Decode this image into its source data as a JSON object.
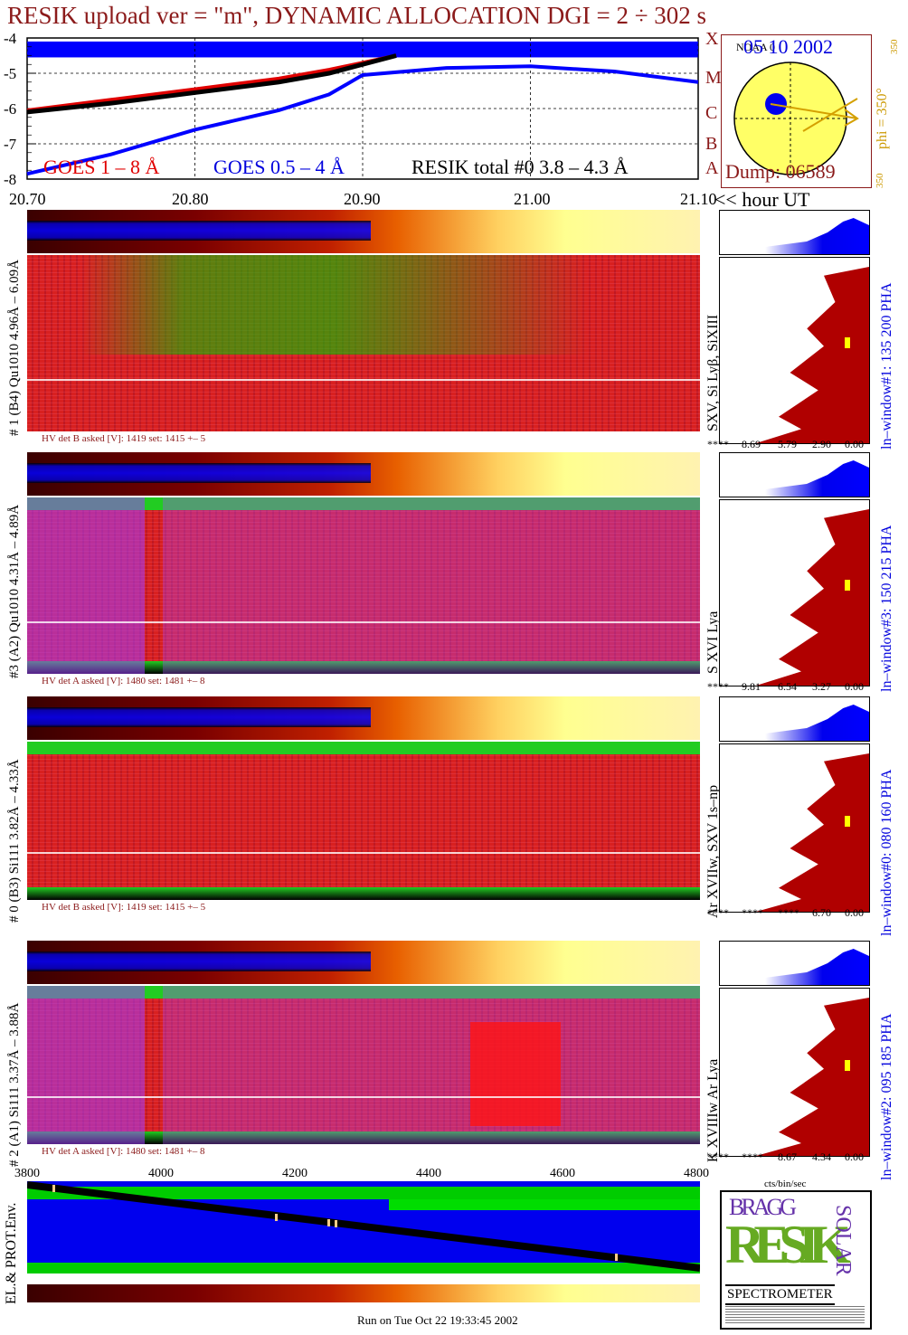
{
  "title": "RESIK upload ver = \"m\", DYNAMIC ALLOCATION  DGI =   2 ÷ 302 s",
  "date": "05 10 2002",
  "dump": "Dump: 06589",
  "noaa": "NOAA 0",
  "phi_label": "phi = 350°",
  "phi_top": "350",
  "phi_bottom": "350",
  "goes_classes": [
    "A",
    "B",
    "C",
    "M",
    "X"
  ],
  "legend": {
    "goes18": "GOES 1 – 8 Å",
    "goes054": "GOES 0.5 – 4 Å",
    "resik": "RESIK total #0  3.8 – 4.3 Å"
  },
  "x_axis_suffix": "<< hour UT",
  "footer": "Run on Tue Oct 22 19:33:45 2002",
  "bottom_axis_label": "cts/bin/sec",
  "env_label": "EL.& PROT.Env.",
  "logo": {
    "line1": "BRAGG",
    "line2": "RESIK",
    "line3": "SOLAR",
    "line4": "SPECTROMETER"
  },
  "channels": [
    {
      "left_label": "# 1 (B4) Qu1010 4.96Å – 6.09Å",
      "right_label": "SXV, Si Lyβ, SiXIII",
      "window": "ln–window#1:  135 200 PHA",
      "hv": "HV det B asked [V]:  1419 set:  1415  +–    5",
      "pha": [
        "****",
        "8.69",
        "5.79",
        "2.90",
        "0.00"
      ]
    },
    {
      "left_label": "#3 (A2) Qu1010  4.31Å – 4.89Å",
      "right_label": "S XVI Lya",
      "window": "ln–window#3:  150 215 PHA",
      "hv": "HV det A asked [V]:  1480 set:  1481  +–    8",
      "pha": [
        "****",
        "9.81",
        "6.54",
        "3.27",
        "0.00"
      ]
    },
    {
      "left_label": "# 0 (B3) Si111  3.82Å – 4.33Å",
      "right_label": "Ar XVIIw,  SXV 1s–np",
      "window": "ln–window#0:  080 160 PHA",
      "hv": "HV det B asked [V]:  1419 set:  1415  +–    5",
      "pha": [
        "****",
        "****",
        "****",
        "6.70",
        "0.00"
      ]
    },
    {
      "left_label": "# 2 (A1) Si111  3.37Å – 3.88Å",
      "right_label": "K XVIIIw  Ar Lya",
      "window": "ln–window#2:  095 185 PHA",
      "hv": "HV det A asked [V]:  1480 set:  1481  +–    8",
      "pha": [
        "****",
        "****",
        "8.67",
        "4.34",
        "0.00"
      ]
    }
  ],
  "chart_data": {
    "type": "line",
    "title": "RESIK upload ver = \"m\", DYNAMIC ALLOCATION  DGI =   2 ÷ 302 s",
    "xlabel": "hour UT",
    "ylabel": "",
    "xlim": [
      20.7,
      21.1
    ],
    "ylim": [
      -8,
      -4
    ],
    "x_ticks": [
      "20.70",
      "20.80",
      "20.90",
      "21.00",
      "21.10"
    ],
    "y_ticks": [
      "-4",
      "-5",
      "-6",
      "-7",
      "-8"
    ],
    "grid": true,
    "series": [
      {
        "name": "GOES 1 – 8 Å",
        "color": "#e00000",
        "x": [
          20.7,
          20.75,
          20.8,
          20.85,
          20.88,
          20.9,
          20.92
        ],
        "values": [
          -6.05,
          -5.75,
          -5.45,
          -5.15,
          -4.9,
          -4.7,
          -4.5
        ]
      },
      {
        "name": "GOES 0.5 – 4 Å",
        "color": "#0000ff",
        "x": [
          20.7,
          20.75,
          20.8,
          20.85,
          20.88,
          20.9,
          20.95,
          21.0,
          21.05,
          21.1
        ],
        "values": [
          -7.85,
          -7.3,
          -6.6,
          -6.05,
          -5.6,
          -5.05,
          -4.85,
          -4.8,
          -4.95,
          -5.25
        ]
      },
      {
        "name": "RESIK total #0  3.8 – 4.3 Å",
        "color": "#000000",
        "x": [
          20.7,
          20.75,
          20.8,
          20.85,
          20.88,
          20.9,
          20.92
        ],
        "values": [
          -6.1,
          -5.85,
          -5.55,
          -5.25,
          -5.0,
          -4.75,
          -4.5
        ]
      }
    ],
    "saturated_level": -4.25,
    "bottom_axis": {
      "ticks": [
        "3800",
        "4000",
        "4200",
        "4400",
        "4600",
        "4800"
      ]
    }
  }
}
